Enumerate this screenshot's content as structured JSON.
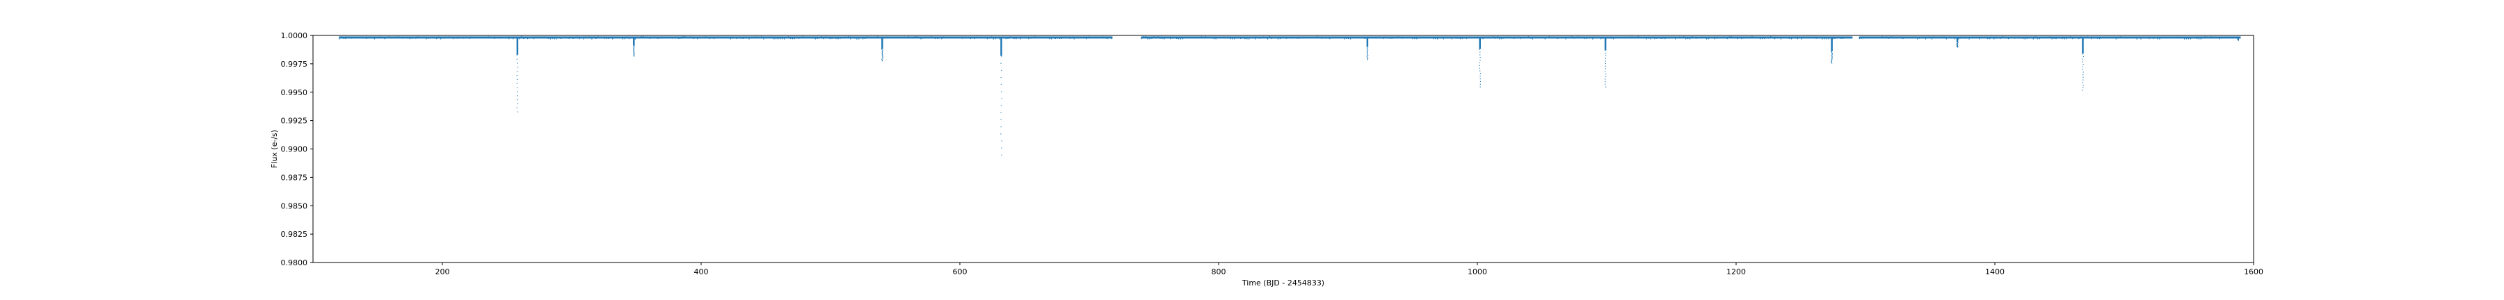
{
  "chart_data": {
    "type": "scatter",
    "title": "",
    "xlabel": "Time (BJD - 2454833)",
    "ylabel": "Flux (e-/s)",
    "xlim": [
      100,
      1600
    ],
    "ylim": [
      0.98,
      1.0
    ],
    "xticks": [
      200,
      400,
      600,
      800,
      1000,
      1200,
      1400,
      1600
    ],
    "yticks": [
      0.98,
      0.9825,
      0.985,
      0.9875,
      0.99,
      0.9925,
      0.995,
      0.9975,
      1.0
    ],
    "ytick_labels": [
      "0.9800",
      "0.9825",
      "0.9850",
      "0.9875",
      "0.9900",
      "0.9925",
      "0.9950",
      "0.9975",
      "1.0000"
    ],
    "grid": false,
    "legend": "none",
    "color": "#1f77b4",
    "series": [
      {
        "baseline": 0.99985,
        "coverage": [
          [
            120,
            718
          ],
          [
            740,
            1290
          ],
          [
            1295,
            1590
          ]
        ],
        "transits": [
          {
            "time": 258,
            "min_flux": 0.9933,
            "core_flux": 0.9983
          },
          {
            "time": 348,
            "min_flux": 0.9982,
            "core_flux": 0.9991
          },
          {
            "time": 540,
            "min_flux": 0.9978,
            "core_flux": 0.9988
          },
          {
            "time": 632,
            "min_flux": 0.9895,
            "core_flux": 0.9982
          },
          {
            "time": 915,
            "min_flux": 0.9979,
            "core_flux": 0.999
          },
          {
            "time": 1002,
            "min_flux": 0.9955,
            "core_flux": 0.9988
          },
          {
            "time": 1099,
            "min_flux": 0.9955,
            "core_flux": 0.9987
          },
          {
            "time": 1274,
            "min_flux": 0.9976,
            "core_flux": 0.9986
          },
          {
            "time": 1371,
            "min_flux": 0.999,
            "core_flux": 0.9994
          },
          {
            "time": 1468,
            "min_flux": 0.9952,
            "core_flux": 0.9984
          },
          {
            "time": 1588,
            "min_flux": 0.9996,
            "core_flux": 0.9998
          }
        ]
      }
    ]
  }
}
